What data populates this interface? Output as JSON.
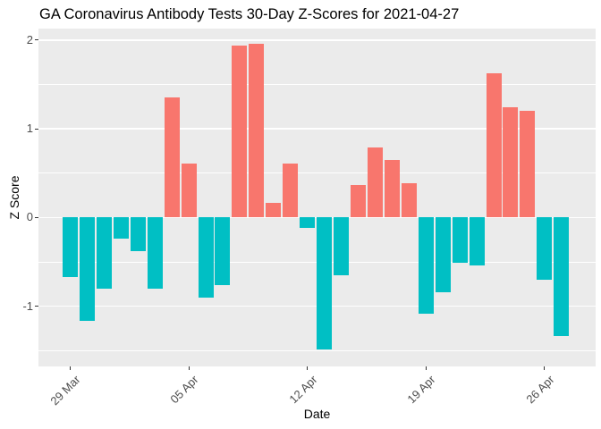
{
  "chart": {
    "title": "GA Coronavirus Antibody Tests 30-Day Z-Scores for 2021-04-27",
    "xlabel": "Date",
    "ylabel": "Z Score"
  },
  "chart_data": {
    "type": "bar",
    "title": "GA Coronavirus Antibody Tests 30-Day Z-Scores for 2021-04-27",
    "xlabel": "Date",
    "ylabel": "Z Score",
    "categories": [
      "29 Mar",
      "30 Mar",
      "31 Mar",
      "01 Apr",
      "02 Apr",
      "03 Apr",
      "04 Apr",
      "05 Apr",
      "06 Apr",
      "07 Apr",
      "08 Apr",
      "09 Apr",
      "10 Apr",
      "11 Apr",
      "12 Apr",
      "13 Apr",
      "14 Apr",
      "15 Apr",
      "16 Apr",
      "17 Apr",
      "18 Apr",
      "19 Apr",
      "20 Apr",
      "21 Apr",
      "22 Apr",
      "23 Apr",
      "24 Apr",
      "25 Apr",
      "26 Apr",
      "27 Apr"
    ],
    "values": [
      -0.67,
      -1.17,
      -0.8,
      -0.24,
      -0.38,
      -0.8,
      1.35,
      0.61,
      -0.9,
      -0.76,
      1.94,
      1.96,
      0.16,
      0.61,
      -0.12,
      -1.49,
      -0.65,
      0.37,
      0.79,
      0.65,
      0.39,
      -1.09,
      -0.84,
      -0.51,
      -0.54,
      1.63,
      1.24,
      1.2,
      -0.7,
      -1.34
    ],
    "x_tick_labels": [
      "29 Mar",
      "05 Apr",
      "12 Apr",
      "19 Apr",
      "26 Apr"
    ],
    "x_tick_indices": [
      0,
      7,
      14,
      21,
      28
    ],
    "y_major_ticks": [
      2,
      1,
      0,
      -1
    ],
    "y_minor_ticks": [
      1.5,
      0.5,
      -0.5,
      -1.5
    ],
    "ylim": [
      -1.68,
      2.13
    ],
    "grid": "on",
    "legend_position": "none",
    "positive_color": "#F8766D",
    "negative_color": "#00BFC4",
    "panel_background": "#EBEBEB",
    "grid_color": "#FFFFFF",
    "tick_label_color": "#4D4D4D"
  }
}
